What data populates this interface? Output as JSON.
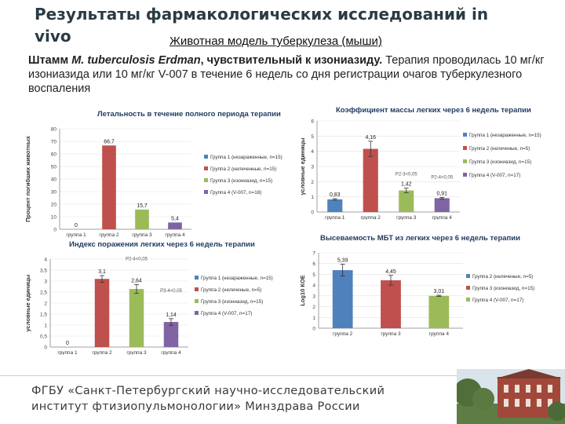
{
  "slide": {
    "title": "Результаты фармакологических исследований in vivo",
    "subtitle": "Животная модель туберкулеза (мыши)",
    "desc_strain": "Штамм ",
    "desc_species": "M. tuberculosis Erdman",
    "desc_sensitivity": ", чувствительный к изониазиду.",
    "desc_rest": " Терапия проводилась 10 мг/кг изониазида или 10 мг/кг V-007 в течение 6 недель со дня регистрации очагов туберкулезного воспаления",
    "footer": "ФГБУ «Санкт-Петербургский научно-исследовательский институт фтизиопульмонологии» Минздрава России"
  },
  "colors": {
    "group1": "#4f81bd",
    "group2": "#c0504d",
    "group3": "#9bbb59",
    "group4": "#8064a2",
    "title": "#2a3b45",
    "accent": "#5a9e2f"
  },
  "chart_data": [
    {
      "id": "lethality",
      "type": "bar",
      "title": "Летальность в течение полного периода терапии",
      "ylabel": "Процент погибших животных",
      "categories": [
        "группа 1",
        "группа 2",
        "группа 3",
        "группа 4"
      ],
      "values": [
        0,
        66.7,
        15.7,
        5.4
      ],
      "value_labels": [
        "0",
        "66,7",
        "15,7",
        "5,4"
      ],
      "bar_colors": [
        "group1",
        "group2",
        "group3",
        "group4"
      ],
      "ylim": [
        0,
        80
      ],
      "yticks": [
        0,
        10,
        20,
        30,
        40,
        50,
        60,
        70,
        80
      ],
      "legend": [
        "Группа 1 (незараженные, n=15)",
        "Группа 2 (нелеченные, n=15)",
        "Группа 3 (изониазид, n=15)",
        "Группа 4 (V-007, n=18)"
      ],
      "legend_colors": [
        "group1",
        "group2",
        "group3",
        "group4"
      ],
      "legend_position": "right"
    },
    {
      "id": "lung_mass",
      "type": "bar",
      "title": "Коэффициент массы легких через 6 недель терапии",
      "ylabel": "условные единицы",
      "categories": [
        "группа 1",
        "группа 2",
        "группа 3",
        "группа 4"
      ],
      "values": [
        0.83,
        4.16,
        1.42,
        0.91
      ],
      "value_labels": [
        "0,83",
        "4,16",
        "1,42",
        "0,91"
      ],
      "errors": [
        0.05,
        0.5,
        0.15,
        0.05
      ],
      "bar_colors": [
        "group1",
        "group2",
        "group3",
        "group4"
      ],
      "ylim": [
        0,
        6
      ],
      "yticks": [
        0,
        1,
        2,
        3,
        4,
        5,
        6
      ],
      "annotations": [
        {
          "text": "P2-3<0,05",
          "x_index": 2,
          "y": 2.4
        },
        {
          "text": "P2-4<0,05",
          "x_index": 3,
          "y": 2.2
        }
      ],
      "legend": [
        "Группа 1 (незараженные, n=15)",
        "Группа 2 (нелеченые, n=5)",
        "Группа 3 (изониазид, n=15)",
        "Группа 4 (V-007, n=17)"
      ],
      "legend_colors": [
        "group1",
        "group2",
        "group3",
        "group4"
      ],
      "legend_position": "right"
    },
    {
      "id": "damage_index",
      "type": "bar",
      "title": "Индекс поражения легких через 6 недель терапии",
      "ylabel": "условные единицы",
      "categories": [
        "группа 1",
        "группа 2",
        "группа 3",
        "группа 4"
      ],
      "values": [
        0,
        3.1,
        2.64,
        1.14
      ],
      "value_labels": [
        "0",
        "3,1",
        "2,64",
        "1,14"
      ],
      "errors": [
        0,
        0.15,
        0.2,
        0.15
      ],
      "bar_colors": [
        "group1",
        "group2",
        "group3",
        "group4"
      ],
      "ylim": [
        0,
        4
      ],
      "yticks": [
        0,
        0.5,
        1,
        1.5,
        2,
        2.5,
        3,
        3.5,
        4
      ],
      "ytick_labels": [
        "0",
        "0,5",
        "1",
        "1,5",
        "2",
        "2,5",
        "3",
        "3,5",
        "4"
      ],
      "annotations": [
        {
          "text": "P2-4<0,05",
          "x_index": 2,
          "y": 3.95
        },
        {
          "text": "P3-4<0,05",
          "x_index": 3,
          "y": 2.5
        }
      ],
      "legend": [
        "Группа 1 (незараженные, n=15)",
        "Группа 2 (нелеченые, n=5)",
        "Группа 3 (изониазид, n=15)",
        "Группа 4 (V-007, n=17)"
      ],
      "legend_colors": [
        "group1",
        "group2",
        "group3",
        "group4"
      ],
      "legend_position": "right"
    },
    {
      "id": "mbt_seeding",
      "type": "bar",
      "title": "Высеваемость МБТ из легких через 6 недель терапии",
      "ylabel": "Log10 КОЕ",
      "categories": [
        "группа 2",
        "группа 3",
        "группа 4"
      ],
      "values": [
        5.39,
        4.45,
        3.01
      ],
      "value_labels": [
        "5,39",
        "4,45",
        "3,01"
      ],
      "errors": [
        0.55,
        0.45,
        0.05
      ],
      "bar_colors": [
        "group1",
        "group2",
        "group3"
      ],
      "ylim": [
        0,
        7
      ],
      "yticks": [
        0,
        1,
        2,
        3,
        4,
        5,
        6,
        7
      ],
      "legend": [
        "Группа 2 (нелеченые, n=5)",
        "Группа 3 (изониазид, n=15)",
        "Группа 4 (V-007, n=17)"
      ],
      "legend_colors": [
        "group1",
        "group2",
        "group3"
      ],
      "legend_position": "right"
    }
  ]
}
